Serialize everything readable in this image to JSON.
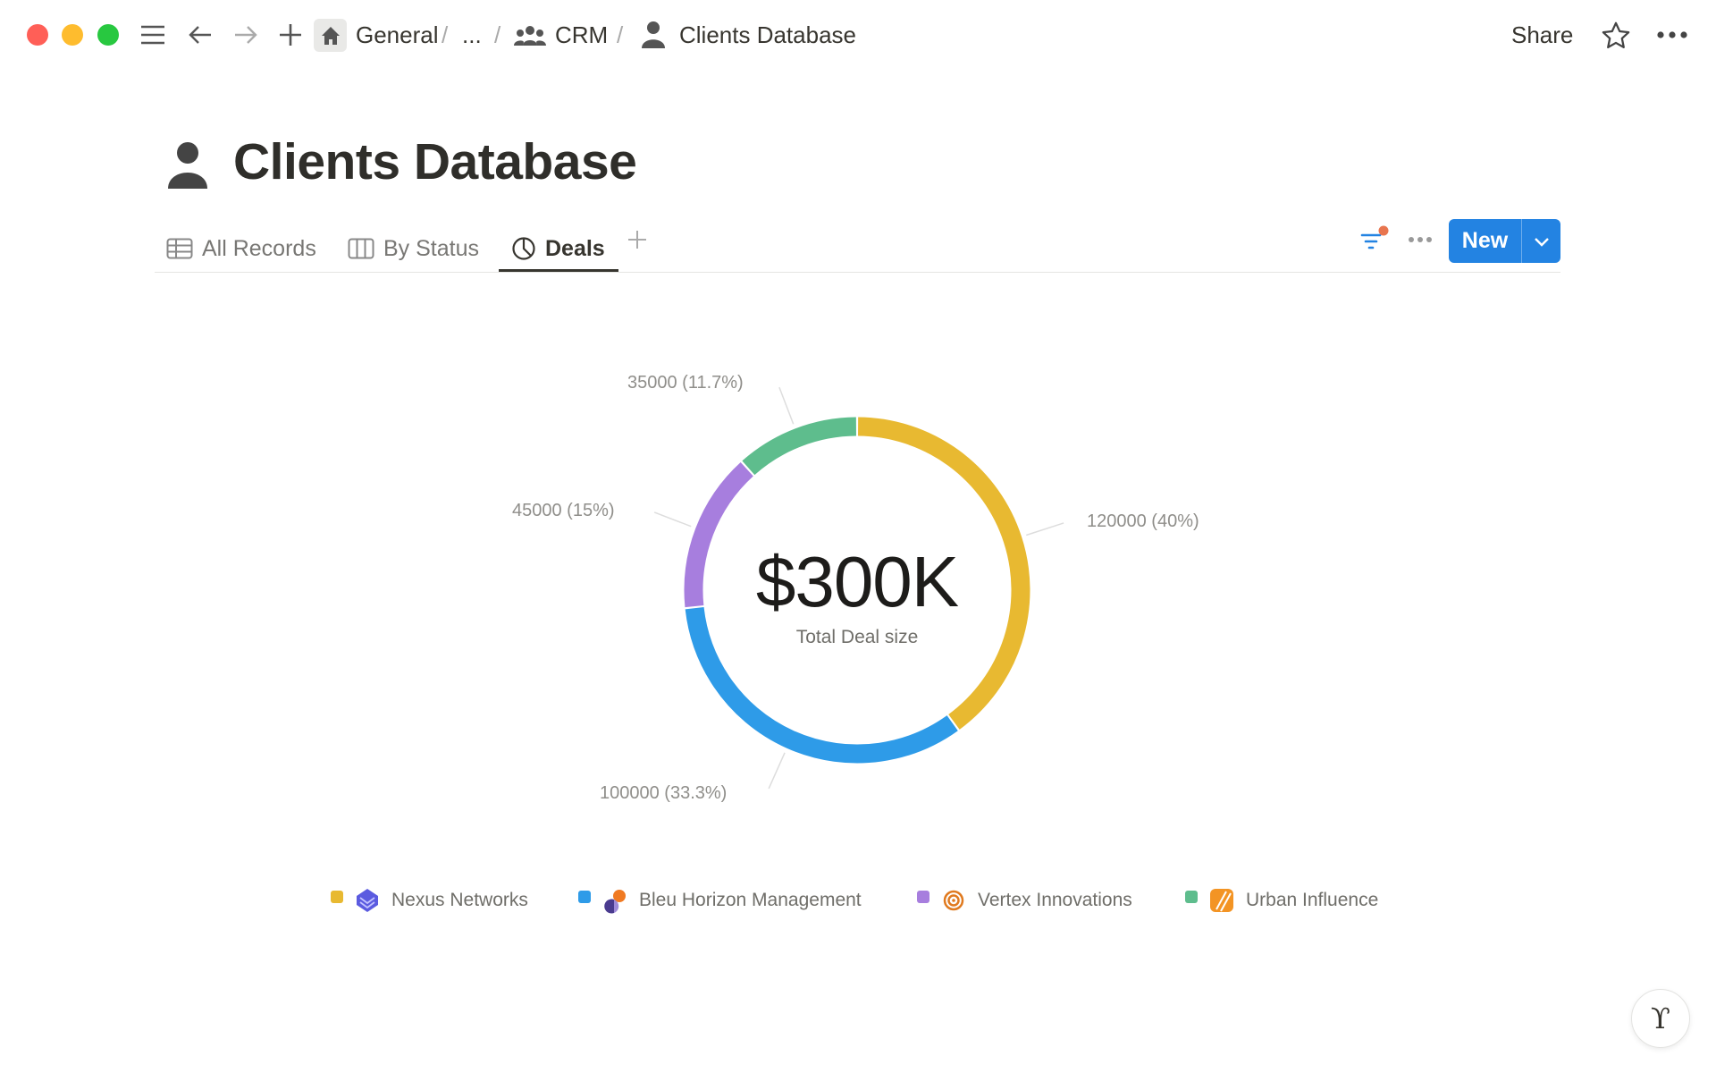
{
  "window": {
    "traffic_lights": [
      "#ff5f57",
      "#febc2e",
      "#28c840"
    ]
  },
  "breadcrumb": {
    "items": [
      "General",
      "...",
      "CRM",
      "Clients Database"
    ]
  },
  "topbar": {
    "share_label": "Share"
  },
  "page": {
    "title": "Clients Database"
  },
  "tabs": [
    {
      "label": "All Records",
      "icon": "table-icon"
    },
    {
      "label": "By Status",
      "icon": "board-icon"
    },
    {
      "label": "Deals",
      "icon": "pie-chart-icon",
      "active": true
    }
  ],
  "toolbar": {
    "new_label": "New",
    "filter_active_color": "#e8754f"
  },
  "chart_data": {
    "type": "donut",
    "center_value": "$300K",
    "center_label": "Total Deal size",
    "slices": [
      {
        "name": "Nexus Networks",
        "value": 120000,
        "label": "120000 (40%)",
        "color": "#e8b931"
      },
      {
        "name": "Bleu Horizon Management",
        "value": 100000,
        "label": "100000 (33.3%)",
        "color": "#2e9be8"
      },
      {
        "name": "Vertex Innovations",
        "value": 45000,
        "label": "45000 (15%)",
        "color": "#a77ede"
      },
      {
        "name": "Urban Influence",
        "value": 35000,
        "label": "35000 (11.7%)",
        "color": "#5ebd8d"
      }
    ],
    "legend_position": "bottom"
  },
  "brand_color": "#2383e2"
}
